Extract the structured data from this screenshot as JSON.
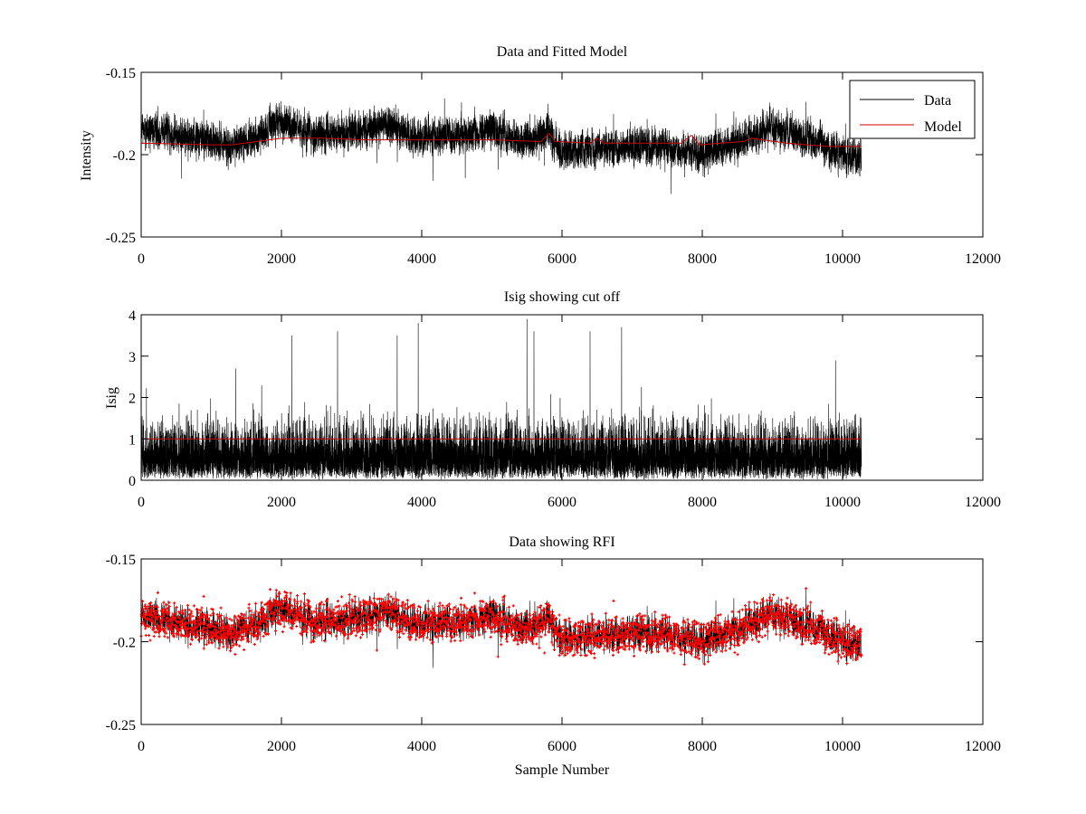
{
  "chart_data": [
    {
      "id": "top",
      "type": "line",
      "title": "Data and Fitted Model",
      "xlabel": "",
      "ylabel": "Intensity",
      "xlim": [
        0,
        12000
      ],
      "ylim": [
        -0.25,
        -0.15
      ],
      "xticks": [
        "0",
        "2000",
        "4000",
        "6000",
        "8000",
        "10000",
        "12000"
      ],
      "yticks": [
        "-0.25",
        "-0.2",
        "-0.15"
      ],
      "legend": {
        "placement": "top-right",
        "entries": [
          "Data",
          "Model"
        ]
      },
      "series": [
        {
          "name": "Data",
          "color": "#000000",
          "n_samples": 10270,
          "baseline": [
            [
              0,
              -0.185
            ],
            [
              500,
              -0.188
            ],
            [
              1000,
              -0.192
            ],
            [
              1300,
              -0.195
            ],
            [
              1600,
              -0.19
            ],
            [
              2000,
              -0.18
            ],
            [
              2500,
              -0.188
            ],
            [
              3000,
              -0.186
            ],
            [
              3500,
              -0.182
            ],
            [
              4000,
              -0.19
            ],
            [
              4500,
              -0.188
            ],
            [
              5000,
              -0.186
            ],
            [
              5500,
              -0.192
            ],
            [
              5800,
              -0.186
            ],
            [
              6000,
              -0.198
            ],
            [
              6500,
              -0.196
            ],
            [
              7000,
              -0.195
            ],
            [
              7500,
              -0.196
            ],
            [
              8000,
              -0.2
            ],
            [
              8500,
              -0.192
            ],
            [
              9000,
              -0.183
            ],
            [
              9500,
              -0.19
            ],
            [
              10000,
              -0.2
            ],
            [
              10270,
              -0.2
            ]
          ],
          "min": -0.232,
          "max": -0.158
        },
        {
          "name": "Model",
          "color": "#cc0000",
          "points": [
            [
              0,
              -0.193
            ],
            [
              1000,
              -0.194
            ],
            [
              1300,
              -0.194
            ],
            [
              2000,
              -0.19
            ],
            [
              2600,
              -0.19
            ],
            [
              3200,
              -0.191
            ],
            [
              4000,
              -0.191
            ],
            [
              5000,
              -0.191
            ],
            [
              5700,
              -0.192
            ],
            [
              5820,
              -0.187
            ],
            [
              5900,
              -0.192
            ],
            [
              6400,
              -0.193
            ],
            [
              6500,
              -0.19
            ],
            [
              6600,
              -0.193
            ],
            [
              7700,
              -0.193
            ],
            [
              7850,
              -0.188
            ],
            [
              7950,
              -0.194
            ],
            [
              8600,
              -0.192
            ],
            [
              8700,
              -0.19
            ],
            [
              9200,
              -0.193
            ],
            [
              9800,
              -0.195
            ],
            [
              10270,
              -0.195
            ]
          ]
        }
      ]
    },
    {
      "id": "mid",
      "type": "line",
      "title": "Isig showing cut off",
      "xlabel": "",
      "ylabel": "Isig",
      "xlim": [
        0,
        12000
      ],
      "ylim": [
        0,
        4
      ],
      "xticks": [
        "0",
        "2000",
        "4000",
        "6000",
        "8000",
        "10000",
        "12000"
      ],
      "yticks": [
        "0",
        "1",
        "2",
        "3",
        "4"
      ],
      "series": [
        {
          "name": "",
          "color": "#000000",
          "n_samples": 10270,
          "max": 3.9
        },
        {
          "name": "",
          "color": "#cc0000",
          "points": [
            [
              0,
              1
            ],
            [
              10270,
              1
            ]
          ]
        }
      ],
      "spikes": [
        [
          1350,
          2.7
        ],
        [
          2150,
          3.5
        ],
        [
          2800,
          3.6
        ],
        [
          3650,
          3.5
        ],
        [
          3950,
          3.8
        ],
        [
          5500,
          3.9
        ],
        [
          5600,
          3.6
        ],
        [
          6400,
          3.6
        ],
        [
          6850,
          3.7
        ],
        [
          9900,
          2.9
        ]
      ]
    },
    {
      "id": "bot",
      "type": "line",
      "title": "Data showing RFI",
      "xlabel": "Sample Number",
      "ylabel": "",
      "xlim": [
        0,
        12000
      ],
      "ylim": [
        -0.25,
        -0.15
      ],
      "xticks": [
        "0",
        "2000",
        "4000",
        "6000",
        "8000",
        "10000",
        "12000"
      ],
      "yticks": [
        "-0.25",
        "-0.2",
        "-0.15"
      ],
      "series": [
        {
          "name": "",
          "color": "#000000",
          "n_samples": 10270
        },
        {
          "name": "",
          "color": "#ff0000",
          "marker": "dot",
          "n_samples": 10270
        }
      ]
    }
  ]
}
